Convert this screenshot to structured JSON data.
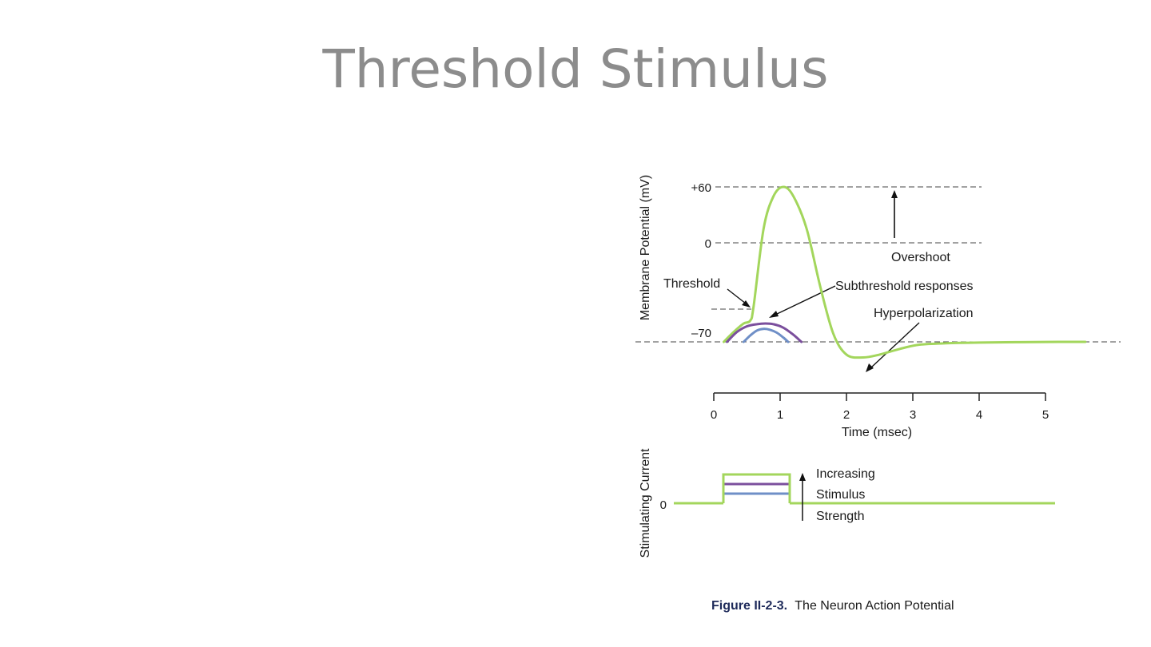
{
  "slide": {
    "title": "Threshold Stimulus"
  },
  "colors": {
    "action_potential": "#a3d65c",
    "subthreshold_strong": "#7b4f9d",
    "subthreshold_weak": "#6f8fc7",
    "axis": "#222222",
    "dashed": "#444444"
  },
  "chart_data": [
    {
      "type": "line",
      "ylabel": "Membrane Potential (mV)",
      "xlabel": "Time (msec)",
      "x_ticks": [
        0,
        1,
        2,
        3,
        4,
        5
      ],
      "x_tick_labels": [
        "0",
        "1",
        "2",
        "3",
        "4",
        "5"
      ],
      "y_ticks": [
        {
          "value": 60,
          "label": "+60"
        },
        {
          "value": 0,
          "label": "0"
        },
        {
          "value": -70,
          "label": "–70"
        }
      ],
      "xlim": [
        0,
        5.6
      ],
      "ylim": [
        -85,
        60
      ],
      "threshold_mv": -55,
      "annotations": {
        "threshold": "Threshold",
        "overshoot": "Overshoot",
        "subthreshold": "Subthreshold responses",
        "hyperpolarization": "Hyperpolarization"
      },
      "series": [
        {
          "name": "",
          "x": [
            0.15,
            0.3,
            0.45,
            0.55,
            0.6,
            0.75,
            0.9,
            1.05,
            1.2,
            1.4,
            1.6,
            1.8,
            2.0,
            2.25,
            2.5,
            2.8,
            3.1,
            3.5,
            4.0,
            4.6,
            5.2,
            5.6
          ],
          "y": [
            -70,
            -63,
            -57,
            -55,
            -45,
            15,
            50,
            60,
            50,
            15,
            -30,
            -64,
            -79,
            -81,
            -79,
            -75,
            -72,
            -71,
            -70.5,
            -70.2,
            -70,
            -70
          ]
        },
        {
          "name": "",
          "x": [
            0.2,
            0.35,
            0.5,
            0.65,
            0.78,
            0.9,
            1.05,
            1.2,
            1.32
          ],
          "y": [
            -70,
            -63,
            -59,
            -57.5,
            -57,
            -57.5,
            -60,
            -65,
            -70
          ]
        },
        {
          "name": "",
          "x": [
            0.45,
            0.55,
            0.65,
            0.75,
            0.85,
            0.95,
            1.05,
            1.12
          ],
          "y": [
            -70,
            -65.5,
            -62,
            -60.8,
            -61.5,
            -63.5,
            -67,
            -70
          ]
        }
      ]
    },
    {
      "type": "line",
      "ylabel": "Stimulating Current",
      "y_ticks": [
        {
          "value": 0,
          "label": "0"
        }
      ],
      "xlim": [
        -0.6,
        5.2
      ],
      "levels": [
        1,
        2,
        3
      ],
      "pulse_start": 0.1,
      "pulse_end": 1.1,
      "annotation": [
        "Increasing",
        "Stimulus",
        "Strength"
      ],
      "caption_bold": "Figure II-2-3.",
      "caption_rest": "The Neuron Action Potential"
    }
  ]
}
